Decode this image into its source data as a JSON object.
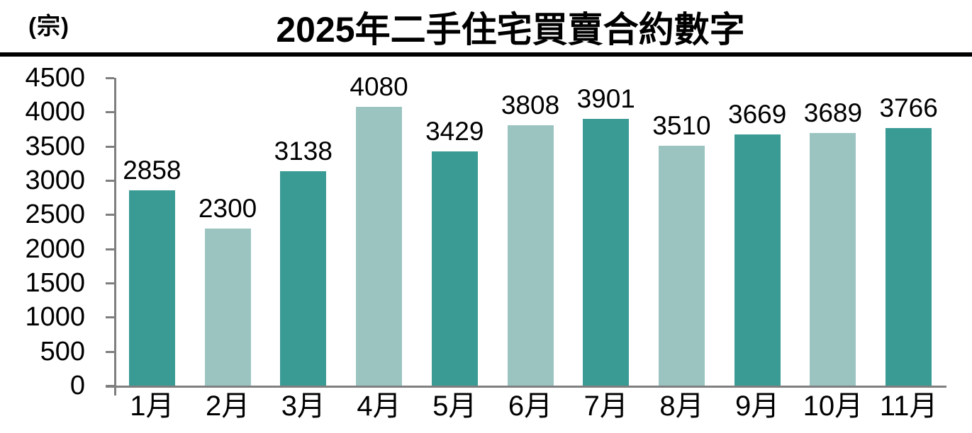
{
  "header": {
    "unit_label": "(宗)",
    "title": "2025年二手住宅買賣合約數字"
  },
  "chart_data": {
    "type": "bar",
    "title": "2025年二手住宅買賣合約數字",
    "ylabel": "(宗)",
    "xlabel": "",
    "categories": [
      "1月",
      "2月",
      "3月",
      "4月",
      "5月",
      "6月",
      "7月",
      "8月",
      "9月",
      "10月",
      "11月"
    ],
    "values": [
      2858,
      2300,
      3138,
      4080,
      3429,
      3808,
      3901,
      3510,
      3669,
      3689,
      3766
    ],
    "ylim": [
      0,
      4500
    ],
    "yticks": [
      0,
      500,
      1000,
      1500,
      2000,
      2500,
      3000,
      3500,
      4000,
      4500
    ],
    "grid": false,
    "legend": false,
    "data_labels": true,
    "bar_color_odd_months": "#3a9b95",
    "bar_color_even_months": "#9bc4c1"
  },
  "colors": {
    "bar_dark": "#3a9b95",
    "bar_light": "#9bc4c1",
    "axis": "#7f7f7f",
    "title_rule": "#000000",
    "text": "#000000",
    "background": "#ffffff"
  }
}
